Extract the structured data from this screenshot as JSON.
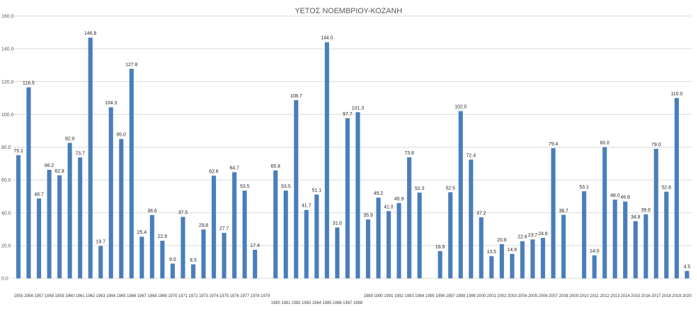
{
  "chart_data": {
    "type": "bar",
    "title": "ΥΕΤΟΣ ΝΟΕΜΒΡΙΟΥ-ΚΟΖΑΝΗ",
    "xlabel": "",
    "ylabel": "",
    "ylim": [
      0,
      160
    ],
    "yticks": [
      "0.0",
      "20.0",
      "40.0",
      "60.0",
      "80.0",
      "100.0",
      "120.0",
      "140.0",
      "160.0"
    ],
    "grid": true,
    "legend": "none",
    "bar_color": "#4a7ebb",
    "categories": [
      "1955",
      "1956",
      "1957",
      "1958",
      "1959",
      "1960",
      "1961",
      "1962",
      "1963",
      "1964",
      "1965",
      "1966",
      "1967",
      "1968",
      "1969",
      "1970",
      "1971",
      "1972",
      "1973",
      "1974",
      "1975",
      "1976",
      "1977",
      "1978",
      "1979",
      "1980",
      "1981",
      "1982",
      "1983",
      "1984",
      "1985",
      "1986",
      "1987",
      "1988",
      "1989",
      "1990",
      "1991",
      "1992",
      "1993",
      "1994",
      "1995",
      "1996",
      "1997",
      "1998",
      "1999",
      "2000",
      "2001",
      "2002",
      "2003",
      "2004",
      "2005",
      "2006",
      "2007",
      "2008",
      "2009",
      "2010",
      "2011",
      "2012",
      "2013",
      "2014",
      "2015",
      "2016",
      "2017",
      "2018",
      "2019",
      "2020"
    ],
    "values": [
      75.1,
      116.5,
      48.7,
      66.2,
      62.8,
      82.6,
      73.7,
      146.8,
      19.7,
      104.3,
      85.0,
      127.8,
      25.4,
      38.6,
      22.9,
      9.0,
      37.5,
      8.5,
      29.8,
      62.6,
      27.7,
      64.7,
      53.5,
      17.4,
      null,
      65.8,
      53.5,
      108.7,
      41.7,
      51.1,
      144.0,
      31.0,
      97.7,
      101.3,
      35.9,
      49.2,
      41.0,
      45.9,
      73.8,
      52.3,
      null,
      16.6,
      52.5,
      102.0,
      72.4,
      37.2,
      13.5,
      20.8,
      14.9,
      22.6,
      23.7,
      24.6,
      79.4,
      38.7,
      null,
      53.1,
      14.0,
      80.0,
      48.0,
      46.8,
      34.8,
      39.0,
      79.0,
      52.8,
      110.0,
      4.5
    ],
    "data_labels": [
      "75.1",
      "116.5",
      "48.7",
      "66.2",
      "62.8",
      "82.6",
      "73.7",
      "146.8",
      "19.7",
      "104.3",
      "85.0",
      "127.8",
      "25.4",
      "38.6",
      "22.9",
      "9.0",
      "37.5",
      "8.5",
      "29.8",
      "62.6",
      "27.7",
      "64.7",
      "53.5",
      "17.4",
      "",
      "65.8",
      "53.5",
      "108.7",
      "41.7",
      "51.1",
      "144.0",
      "31.0",
      "97.7",
      "101.3",
      "35.9",
      "49.2",
      "41.0",
      "45.9",
      "73.8",
      "52.3",
      "",
      "16.6",
      "52.5",
      "102.0",
      "72.4",
      "37.2",
      "13.5",
      "20.8",
      "14.9",
      "22.6",
      "23.7",
      "24.6",
      "79.4",
      "38.7",
      "",
      "53.1",
      "14.0",
      "80.0",
      "48.0",
      "46.8",
      "34.8",
      "39.0",
      "79.0",
      "52.8",
      "110.0",
      "4.5"
    ]
  }
}
